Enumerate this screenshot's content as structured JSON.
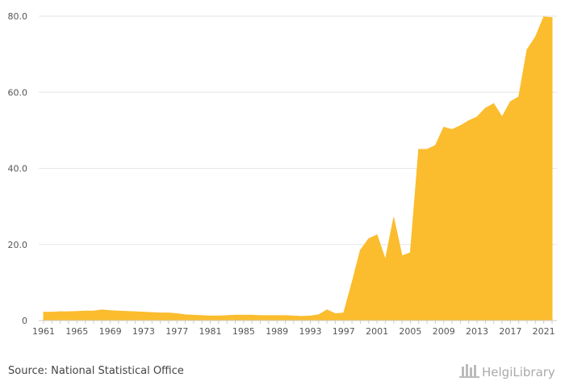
{
  "chart_data": {
    "type": "area",
    "title": "",
    "xlabel": "",
    "ylabel": "",
    "x": [
      1961,
      1962,
      1963,
      1964,
      1965,
      1966,
      1967,
      1968,
      1969,
      1970,
      1971,
      1972,
      1973,
      1974,
      1975,
      1976,
      1977,
      1978,
      1979,
      1980,
      1981,
      1982,
      1983,
      1984,
      1985,
      1986,
      1987,
      1988,
      1989,
      1990,
      1991,
      1992,
      1993,
      1994,
      1995,
      1996,
      1997,
      1998,
      1999,
      2000,
      2001,
      2002,
      2003,
      2004,
      2005,
      2006,
      2007,
      2008,
      2009,
      2010,
      2011,
      2012,
      2013,
      2014,
      2015,
      2016,
      2017,
      2018,
      2019,
      2020,
      2021,
      2022
    ],
    "series": [
      {
        "values": [
          2.2,
          2.2,
          2.3,
          2.3,
          2.4,
          2.5,
          2.5,
          2.8,
          2.6,
          2.5,
          2.4,
          2.3,
          2.2,
          2.1,
          2.0,
          2.0,
          1.8,
          1.5,
          1.4,
          1.3,
          1.2,
          1.2,
          1.3,
          1.4,
          1.4,
          1.4,
          1.3,
          1.3,
          1.3,
          1.3,
          1.2,
          1.1,
          1.2,
          1.5,
          2.8,
          1.8,
          2.0,
          10.0,
          18.5,
          21.5,
          22.5,
          16.0,
          27.0,
          17.0,
          17.8,
          45.0,
          45.0,
          46.0,
          50.8,
          50.2,
          51.2,
          52.5,
          53.5,
          55.8,
          57.0,
          53.5,
          57.5,
          58.8,
          71.2,
          74.5,
          79.8,
          79.6
        ]
      }
    ],
    "xticks": [
      "1961",
      "1965",
      "1969",
      "1973",
      "1977",
      "1981",
      "1985",
      "1989",
      "1993",
      "1997",
      "2001",
      "2005",
      "2009",
      "2013",
      "2017",
      "2021"
    ],
    "yticks": [
      "0",
      "20.0",
      "40.0",
      "60.0",
      "80.0"
    ],
    "ylim": [
      0,
      80
    ],
    "grid": true,
    "fill_color": "#fbbd2e",
    "grid_color": "#e6e6e6",
    "axis_color": "#cccccc"
  },
  "footer": {
    "source": "Source: National Statistical Office",
    "logo": "HelgiLibrary"
  }
}
